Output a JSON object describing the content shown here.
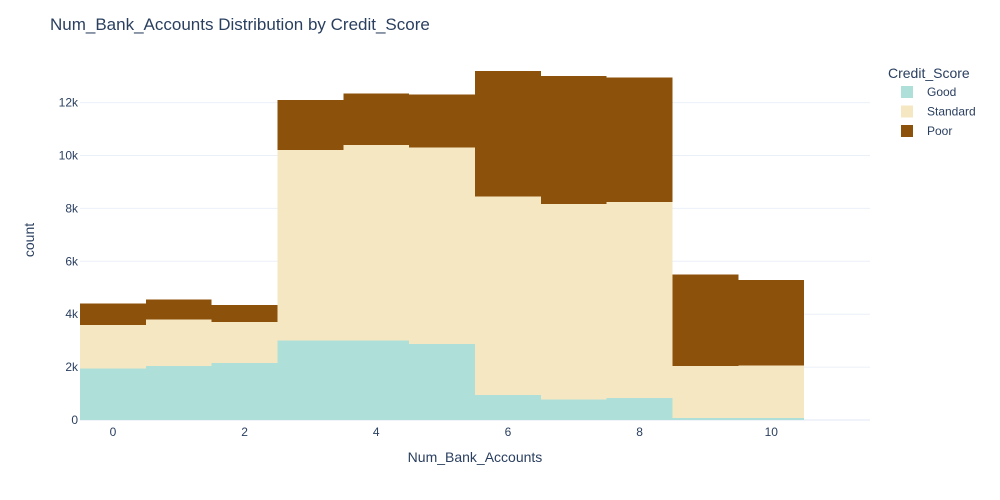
{
  "chart_data": {
    "type": "bar",
    "barmode": "stack",
    "title": "Num_Bank_Accounts Distribution by Credit_Score",
    "xlabel": "Num_Bank_Accounts",
    "ylabel": "count",
    "legend_title": "Credit_Score",
    "legend_position": "top-right",
    "x": [
      0,
      1,
      2,
      3,
      4,
      5,
      6,
      7,
      8,
      9,
      10
    ],
    "x_ticks": [
      0,
      2,
      4,
      6,
      8,
      10
    ],
    "x_tick_labels": [
      "0",
      "2",
      "4",
      "6",
      "8",
      "10"
    ],
    "xlim": [
      -0.5,
      11.5
    ],
    "y_ticks": [
      0,
      2000,
      4000,
      6000,
      8000,
      10000,
      12000
    ],
    "y_tick_labels": [
      "0",
      "2k",
      "4k",
      "6k",
      "8k",
      "10k",
      "12k"
    ],
    "ylim": [
      0,
      13800
    ],
    "grid": true,
    "series": [
      {
        "name": "Good",
        "color": "#aedfd9",
        "values": [
          1950,
          2050,
          2150,
          3000,
          3000,
          2880,
          950,
          780,
          830,
          70,
          70
        ]
      },
      {
        "name": "Standard",
        "color": "#f6e7c3",
        "values": [
          1650,
          1750,
          1550,
          7200,
          7400,
          7420,
          7500,
          7380,
          7420,
          1970,
          2000
        ]
      },
      {
        "name": "Poor",
        "color": "#8c510a",
        "values": [
          800,
          750,
          650,
          1900,
          1950,
          2000,
          4750,
          4850,
          4700,
          3460,
          3230
        ]
      }
    ]
  }
}
